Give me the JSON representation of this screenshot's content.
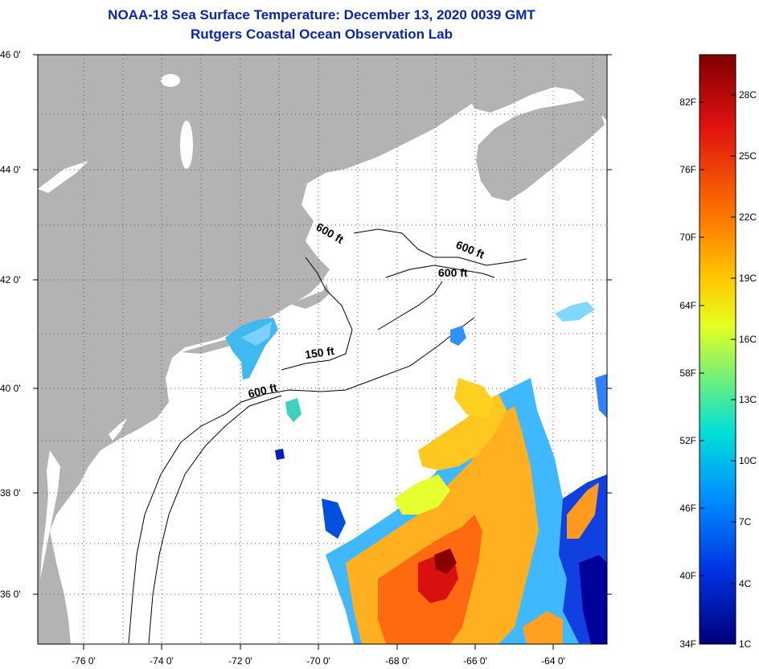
{
  "title": {
    "line1": "NOAA-18 Sea Surface Temperature:  December 13, 2020 0039 GMT",
    "line2": "Rutgers Coastal Ocean Observation Lab"
  },
  "map": {
    "lat_labels": [
      "46 0'",
      "44 0'",
      "42 0'",
      "40 0'",
      "38 0'",
      "36 0'"
    ],
    "lon_labels": [
      "-76 0'",
      "-74 0'",
      "-72 0'",
      "-70 0'",
      "-68 0'",
      "-66 0'",
      "-64 0'"
    ],
    "lat_range": [
      35,
      46
    ],
    "lon_range": [
      -77,
      -62.5
    ],
    "contour_labels": [
      "600 ft",
      "600 ft",
      "600 ft",
      "150 ft",
      "600 ft"
    ],
    "land_color": "#b3b3b3",
    "ocean_color": "#ffffff"
  },
  "colorbar": {
    "fahrenheit": [
      "82F",
      "76F",
      "70F",
      "64F",
      "58F",
      "52F",
      "46F",
      "40F",
      "34F"
    ],
    "celsius": [
      "28C",
      "25C",
      "22C",
      "19C",
      "16C",
      "13C",
      "10C",
      "7C",
      "4C",
      "1C"
    ],
    "colors": [
      "#7f0000",
      "#e01010",
      "#ff7a00",
      "#ffc800",
      "#e6ff20",
      "#70f07a",
      "#00e0d8",
      "#0090ff",
      "#0030e0",
      "#00007a"
    ]
  }
}
